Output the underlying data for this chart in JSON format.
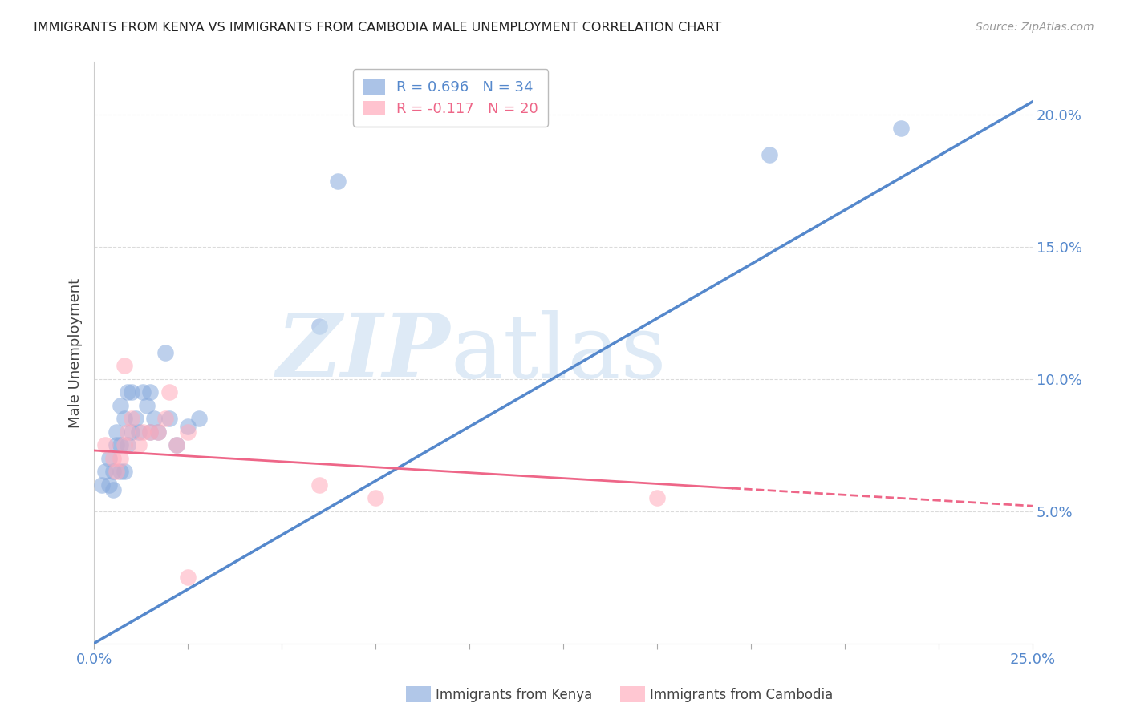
{
  "title": "IMMIGRANTS FROM KENYA VS IMMIGRANTS FROM CAMBODIA MALE UNEMPLOYMENT CORRELATION CHART",
  "source": "Source: ZipAtlas.com",
  "ylabel": "Male Unemployment",
  "xlim": [
    0.0,
    0.25
  ],
  "ylim": [
    0.0,
    0.22
  ],
  "xticks": [
    0.0,
    0.025,
    0.05,
    0.075,
    0.1,
    0.125,
    0.15,
    0.175,
    0.2,
    0.225,
    0.25
  ],
  "xtick_labels_show": [
    "0.0%",
    "",
    "",
    "",
    "",
    "",
    "",
    "",
    "",
    "",
    "25.0%"
  ],
  "yticks": [
    0.05,
    0.1,
    0.15,
    0.2
  ],
  "ytick_labels": [
    "5.0%",
    "10.0%",
    "15.0%",
    "20.0%"
  ],
  "kenya_color": "#88aadd",
  "cambodia_color": "#ffaabb",
  "kenya_line_color": "#5588cc",
  "cambodia_line_color": "#ee6688",
  "legend_r_kenya": "R = 0.696",
  "legend_n_kenya": "N = 34",
  "legend_r_cambodia": "R = -0.117",
  "legend_n_cambodia": "N = 20",
  "kenya_points_x": [
    0.002,
    0.003,
    0.004,
    0.004,
    0.005,
    0.005,
    0.006,
    0.006,
    0.007,
    0.007,
    0.007,
    0.008,
    0.008,
    0.009,
    0.009,
    0.01,
    0.01,
    0.011,
    0.012,
    0.013,
    0.014,
    0.015,
    0.015,
    0.016,
    0.017,
    0.019,
    0.02,
    0.022,
    0.025,
    0.028,
    0.06,
    0.065,
    0.18,
    0.215
  ],
  "kenya_points_y": [
    0.06,
    0.065,
    0.06,
    0.07,
    0.058,
    0.065,
    0.075,
    0.08,
    0.065,
    0.075,
    0.09,
    0.065,
    0.085,
    0.075,
    0.095,
    0.095,
    0.08,
    0.085,
    0.08,
    0.095,
    0.09,
    0.095,
    0.08,
    0.085,
    0.08,
    0.11,
    0.085,
    0.075,
    0.082,
    0.085,
    0.12,
    0.175,
    0.185,
    0.195
  ],
  "cambodia_points_x": [
    0.003,
    0.005,
    0.006,
    0.007,
    0.008,
    0.008,
    0.009,
    0.01,
    0.012,
    0.013,
    0.015,
    0.017,
    0.019,
    0.02,
    0.022,
    0.025,
    0.06,
    0.075,
    0.15,
    0.025
  ],
  "cambodia_points_y": [
    0.075,
    0.07,
    0.065,
    0.07,
    0.075,
    0.105,
    0.08,
    0.085,
    0.075,
    0.08,
    0.08,
    0.08,
    0.085,
    0.095,
    0.075,
    0.08,
    0.06,
    0.055,
    0.055,
    0.025
  ],
  "kenya_line_x0": 0.0,
  "kenya_line_y0": 0.0,
  "kenya_line_x1": 0.25,
  "kenya_line_y1": 0.205,
  "cambodia_line_x0": 0.0,
  "cambodia_line_y0": 0.073,
  "cambodia_line_x1": 0.25,
  "cambodia_line_y1": 0.052,
  "cambodia_line_dashed_x0": 0.17,
  "background_color": "#ffffff",
  "grid_color": "#cccccc",
  "legend_bottom_kenya": "Immigrants from Kenya",
  "legend_bottom_cambodia": "Immigrants from Cambodia"
}
